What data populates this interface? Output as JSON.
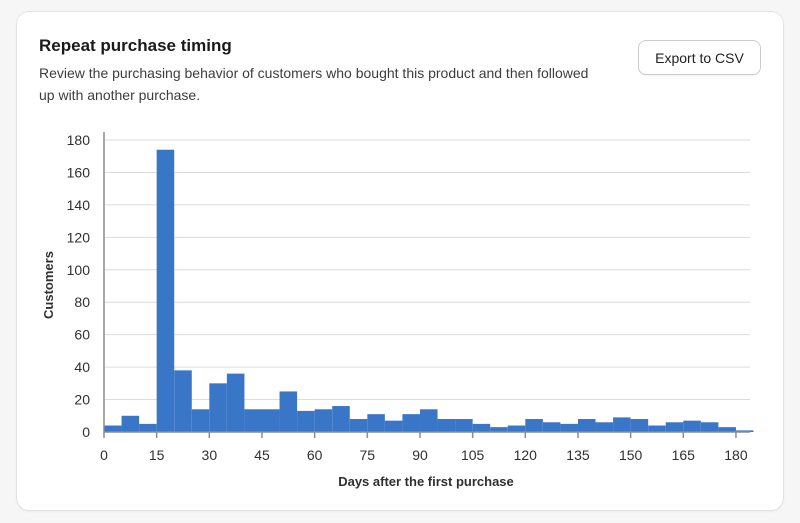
{
  "card": {
    "title": "Repeat purchase timing",
    "description": "Review the purchasing behavior of customers who bought this product and then followed up with another purchase.",
    "export_label": "Export to CSV"
  },
  "colors": {
    "bar": "#3a76c8",
    "grid": "#dcdcdc",
    "axis": "#8c8c8c"
  },
  "chart_data": {
    "type": "bar",
    "xlabel": "Days after the first purchase",
    "ylabel": "Customers",
    "xlim": [
      0,
      184
    ],
    "ylim": [
      0,
      180
    ],
    "x_ticks": [
      0,
      15,
      30,
      45,
      60,
      75,
      90,
      105,
      120,
      135,
      150,
      165,
      180
    ],
    "y_ticks": [
      0,
      20,
      40,
      60,
      80,
      100,
      120,
      140,
      160,
      180
    ],
    "bin_width": 5,
    "bin_starts": [
      0,
      5,
      10,
      15,
      20,
      25,
      30,
      35,
      40,
      45,
      50,
      55,
      60,
      65,
      70,
      75,
      80,
      85,
      90,
      95,
      100,
      105,
      110,
      115,
      120,
      125,
      130,
      135,
      140,
      145,
      150,
      155,
      160,
      165,
      170,
      175,
      180
    ],
    "values": [
      4,
      10,
      5,
      174,
      38,
      14,
      30,
      36,
      14,
      14,
      25,
      13,
      14,
      16,
      8,
      11,
      7,
      11,
      14,
      8,
      8,
      5,
      3,
      4,
      8,
      6,
      5,
      8,
      6,
      9,
      8,
      4,
      6,
      7,
      6,
      3,
      1
    ],
    "grid": true
  }
}
